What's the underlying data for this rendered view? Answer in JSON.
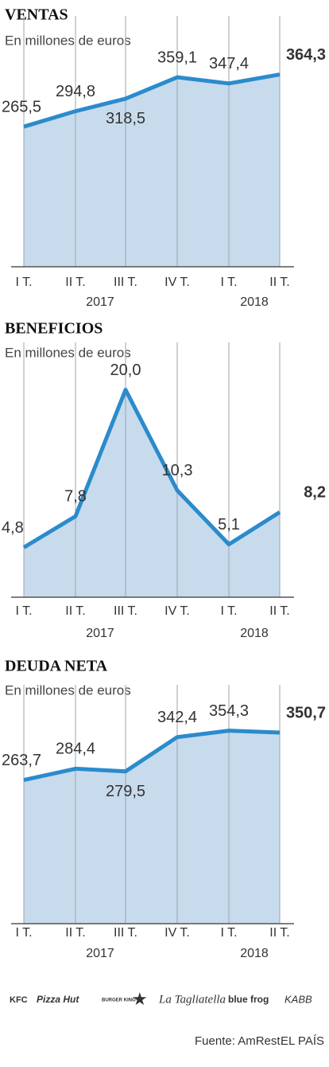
{
  "chart_data": [
    {
      "type": "area",
      "title": "VENTAS",
      "subtitle": "En millones de euros",
      "categories": [
        "I T.",
        "II T.",
        "III T.",
        "IV T.",
        "I T.",
        "II T."
      ],
      "groups": [
        "2017",
        "2018"
      ],
      "values": [
        265.5,
        294.8,
        318.5,
        359.1,
        347.4,
        364.3
      ],
      "value_labels": [
        "265,5",
        "294,8",
        "318,5",
        "359,1",
        "347,4",
        "364,3"
      ],
      "ylim": [
        0,
        415
      ],
      "color": "#2b8bcc",
      "fill": "#c8dbed"
    },
    {
      "type": "area",
      "title": "BENEFICIOS",
      "subtitle": "En millones de euros",
      "categories": [
        "I T.",
        "II T.",
        "III T.",
        "IV T.",
        "I T.",
        "II T."
      ],
      "groups": [
        "2017",
        "2018"
      ],
      "values": [
        4.8,
        7.8,
        20.0,
        10.3,
        5.1,
        8.2
      ],
      "value_labels": [
        "4,8",
        "7,8",
        "20,0",
        "10,3",
        "5,1",
        "8,2"
      ],
      "ylim": [
        0,
        21.5
      ],
      "color": "#2b8bcc",
      "fill": "#c8dbed"
    },
    {
      "type": "area",
      "title": "DEUDA NETA",
      "subtitle": "En millones de euros",
      "categories": [
        "I T.",
        "II T.",
        "III T.",
        "IV T.",
        "I T.",
        "II T."
      ],
      "groups": [
        "2017",
        "2018"
      ],
      "values": [
        263.7,
        284.4,
        279.5,
        342.4,
        354.3,
        350.7
      ],
      "value_labels": [
        "263,7",
        "284,4",
        "279,5",
        "342,4",
        "354,3",
        "350,7"
      ],
      "ylim": [
        0,
        380
      ],
      "color": "#2b8bcc",
      "fill": "#c8dbed"
    }
  ],
  "logos": [
    "KFC",
    "Pizza Hut",
    "BURGER KING",
    "★",
    "La Tagliatella",
    "blue frog",
    "KABB"
  ],
  "source": "Fuente: AmRest.",
  "publisher": "EL PAÍS"
}
